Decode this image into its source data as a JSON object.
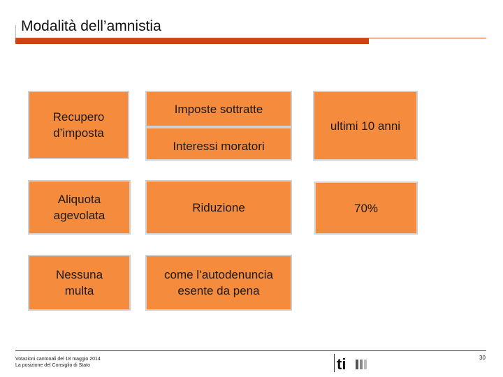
{
  "slide": {
    "title": "Modalità dell’amnistia",
    "boxes": {
      "recupero": "Recupero\nd’imposta",
      "imposte": "Imposte sottratte",
      "interessi": "Interessi moratori",
      "ultimi": "ultimi 10 anni",
      "aliquota": "Aliquota\nagevolata",
      "riduzione": "Riduzione",
      "percent": "70%",
      "nessuna": "Nessuna\nmulta",
      "autodenuncia": "come l’autodenuncia\nesente da pena"
    },
    "footer": {
      "line1": "Votazioni cantonali del 18 maggio 2014",
      "line2": "La posizione del Consiglio di Stato",
      "page_number": "30",
      "logo_text": "ti"
    }
  },
  "colors": {
    "box_fill": "#f58b3c",
    "box_border": "#d0d0d0",
    "accent_bar": "#d0420f"
  },
  "icons": [
    "ticino-logo"
  ]
}
